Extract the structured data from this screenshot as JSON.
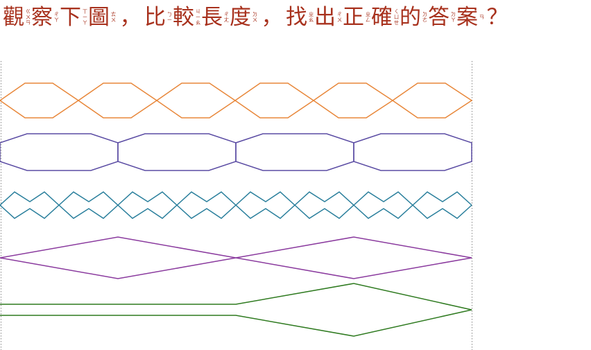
{
  "question": {
    "chars": [
      {
        "han": "觀",
        "zhuyin": [
          "ㄍ",
          "ㄨ",
          "ㄢ"
        ]
      },
      {
        "han": "察",
        "zhuyin": [
          "ㄔ",
          "ㄚ"
        ]
      },
      {
        "han": "下",
        "zhuyin": [
          "ㄒ",
          "ㄧ",
          "ㄚ"
        ]
      },
      {
        "han": "圖",
        "zhuyin": [
          "ㄊ",
          "ㄨ"
        ]
      },
      {
        "punct": "，"
      },
      {
        "han": "比",
        "zhuyin": [
          "ㄅ",
          "ㄧ"
        ]
      },
      {
        "han": "較",
        "zhuyin": [
          "ㄐ",
          "ㄧ",
          "ㄠ"
        ]
      },
      {
        "han": "長",
        "zhuyin": [
          "ㄔ",
          "ㄤ"
        ]
      },
      {
        "han": "度",
        "zhuyin": [
          "ㄉ",
          "ㄨ"
        ]
      },
      {
        "punct": "，"
      },
      {
        "han": "找",
        "zhuyin": [
          "ㄓ",
          "ㄠ"
        ]
      },
      {
        "han": "出",
        "zhuyin": [
          "ㄔ",
          "ㄨ"
        ]
      },
      {
        "han": "正",
        "zhuyin": [
          "ㄓ",
          "ㄥ"
        ]
      },
      {
        "han": "確",
        "zhuyin": [
          "ㄑ",
          "ㄩ",
          "ㄝ"
        ]
      },
      {
        "han": "的",
        "zhuyin": [
          "ㄉ",
          "ㄜ"
        ]
      },
      {
        "han": "答",
        "zhuyin": [
          "ㄉ",
          "ㄚ"
        ]
      },
      {
        "han": "案",
        "zhuyin": [
          "ㄢ"
        ]
      },
      {
        "punct": "？"
      }
    ]
  },
  "colors": {
    "title": "#a8321e",
    "guide": "#888888",
    "shape_orange": "#e8873a",
    "shape_indigo": "#5a4ba3",
    "shape_teal": "#2a7f9c",
    "shape_purple": "#8a3a9e",
    "shape_green": "#2e7a1f"
  },
  "shapes": [
    {
      "name": "orange-hexagon-chain",
      "color_key": "shape_orange",
      "pattern": "6 elongated hexagons"
    },
    {
      "name": "indigo-octagon-chain",
      "color_key": "shape_indigo",
      "pattern": "4 elongated octagons"
    },
    {
      "name": "teal-zigzag-band",
      "color_key": "shape_teal",
      "pattern": "8 crossed zigzag segments"
    },
    {
      "name": "purple-diamond-chain",
      "color_key": "shape_purple",
      "pattern": "2 long diamonds"
    },
    {
      "name": "green-stick-diamond",
      "color_key": "shape_green",
      "pattern": "stick with diamond tip"
    }
  ]
}
